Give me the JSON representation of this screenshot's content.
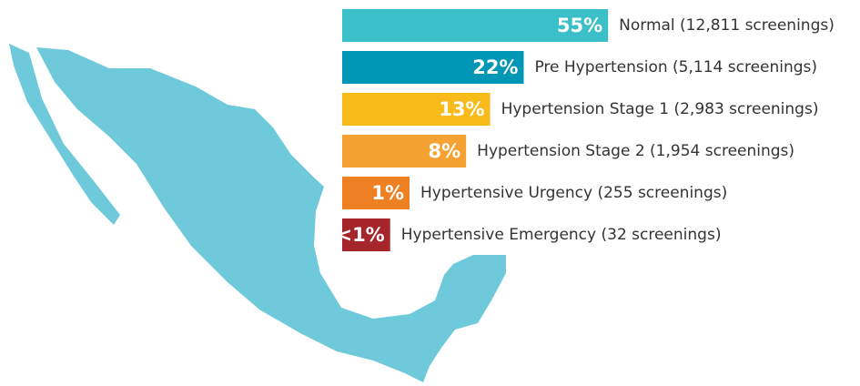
{
  "chart_data": {
    "type": "bar",
    "categories": [
      "Normal (12,811 screenings)",
      "Pre Hypertension (5,114 screenings)",
      "Hypertension Stage 1 (2,983 screenings)",
      "Hypertension Stage 2 (1,954 screenings)",
      "Hypertensive Urgency (255 screenings)",
      "Hypertensive Emergency (32 screenings)"
    ],
    "values": [
      55,
      22,
      13,
      8,
      1,
      0.14
    ],
    "value_labels": [
      "55%",
      "22%",
      "13%",
      "8%",
      "1%",
      "<1%"
    ],
    "colors": [
      "#3bbfc9",
      "#0096b5",
      "#f9bb1a",
      "#f6a233",
      "#ee7f22",
      "#a6252b"
    ]
  }
}
